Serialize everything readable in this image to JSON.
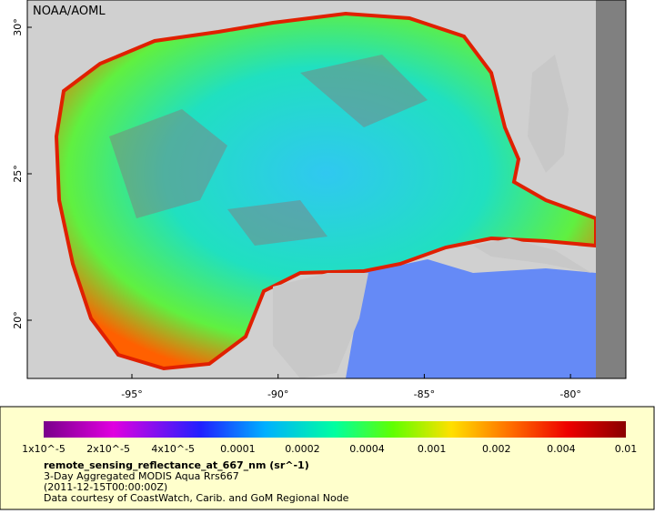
{
  "credit": "NOAA/AOML",
  "lat_labels": [
    "30°",
    "25°",
    "20°"
  ],
  "lon_labels": [
    "-95°",
    "-90°",
    "-85°",
    "-80°"
  ],
  "colorbar": {
    "labels": [
      "1x10^-5",
      "2x10^-5",
      "4x10^-5",
      "0.0001",
      "0.0002",
      "0.0004",
      "0.001",
      "0.002",
      "0.004",
      "0.01"
    ]
  },
  "caption": {
    "variable": "remote_sensing_reflectance_at_667_nm (sr^-1)",
    "lines": [
      "3-Day Aggregated MODIS Aqua Rrs667",
      "(2011-12-15T00:00:00Z)",
      "Data courtesy of CoastWatch, Carib. and GoM Regional Node"
    ]
  }
}
